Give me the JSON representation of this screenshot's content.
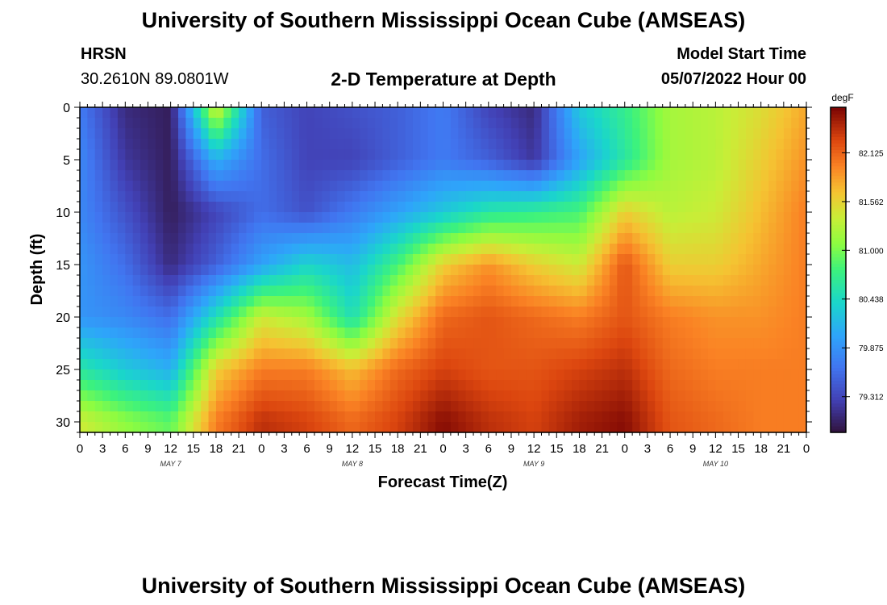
{
  "page": {
    "title": "University of Southern Mississippi Ocean Cube (AMSEAS)",
    "title_repeat": "University of Southern Mississippi Ocean Cube (AMSEAS)",
    "station": "HRSN",
    "coords": "30.2610N  89.0801W",
    "subtitle": "2-D Temperature at Depth",
    "start_label": "Model Start Time",
    "start_value": "05/07/2022 Hour 00"
  },
  "chart_data": {
    "type": "heatmap",
    "title": "2-D Temperature at Depth",
    "xlabel": "Forecast Time(Z)",
    "ylabel": "Depth (ft)",
    "xlim": [
      0,
      96
    ],
    "ylim": [
      0,
      31
    ],
    "yticks": [
      "0",
      "5",
      "10",
      "15",
      "20",
      "25",
      "30"
    ],
    "yvals": [
      0,
      5,
      10,
      15,
      20,
      25,
      30
    ],
    "xticks": [
      "0",
      "3",
      "6",
      "9",
      "12",
      "15",
      "18",
      "21",
      "0",
      "3",
      "6",
      "9",
      "12",
      "15",
      "18",
      "21",
      "0",
      "3",
      "6",
      "9",
      "12",
      "15",
      "18",
      "21",
      "0",
      "3",
      "6",
      "9",
      "12",
      "15",
      "18",
      "21",
      "0"
    ],
    "day_labels": [
      {
        "label": "MAY 7",
        "hour": 12
      },
      {
        "label": "MAY 8",
        "hour": 36
      },
      {
        "label": "MAY 9",
        "hour": 60
      },
      {
        "label": "MAY 10",
        "hour": 84
      }
    ],
    "colorbar": {
      "unit": "degF",
      "ticks": [
        "82.125",
        "81.562",
        "81.000",
        "80.438",
        "79.875",
        "79.312"
      ],
      "tick_values": [
        82.125,
        81.562,
        81.0,
        80.438,
        79.875,
        79.312
      ],
      "range": [
        78.9,
        82.65
      ]
    },
    "times": [
      0,
      6,
      12,
      18,
      24,
      30,
      36,
      42,
      48,
      54,
      60,
      66,
      72,
      78,
      84,
      90,
      96
    ],
    "depths": [
      0,
      5,
      10,
      15,
      20,
      25,
      30
    ],
    "values": [
      [
        79.7,
        79.1,
        79.0,
        81.5,
        79.5,
        79.3,
        79.4,
        79.5,
        79.7,
        79.3,
        79.1,
        80.3,
        80.7,
        81.2,
        81.3,
        81.5,
        81.8
      ],
      [
        79.8,
        79.2,
        79.0,
        80.1,
        79.6,
        79.3,
        79.3,
        79.5,
        79.7,
        79.5,
        79.2,
        80.0,
        80.6,
        81.2,
        81.3,
        81.6,
        81.9
      ],
      [
        79.8,
        79.4,
        79.0,
        79.3,
        79.6,
        79.4,
        79.7,
        80.0,
        80.3,
        80.6,
        80.7,
        80.8,
        81.6,
        81.3,
        81.4,
        81.7,
        82.0
      ],
      [
        79.9,
        79.6,
        79.1,
        79.5,
        80.0,
        80.4,
        80.2,
        80.8,
        81.6,
        81.9,
        81.6,
        81.4,
        82.2,
        81.6,
        81.6,
        81.8,
        82.0
      ],
      [
        79.9,
        79.8,
        79.6,
        80.5,
        81.4,
        81.2,
        80.5,
        81.5,
        82.1,
        82.2,
        82.1,
        82.0,
        82.2,
        82.0,
        81.9,
        81.9,
        82.0
      ],
      [
        80.6,
        80.3,
        80.1,
        81.6,
        82.0,
        82.0,
        81.7,
        82.1,
        82.3,
        82.2,
        82.2,
        82.3,
        82.4,
        82.1,
        82.0,
        82.0,
        82.0
      ],
      [
        81.4,
        81.1,
        80.9,
        82.0,
        82.4,
        82.3,
        82.1,
        82.3,
        82.6,
        82.4,
        82.3,
        82.5,
        82.6,
        82.2,
        82.1,
        82.0,
        82.0
      ]
    ]
  }
}
